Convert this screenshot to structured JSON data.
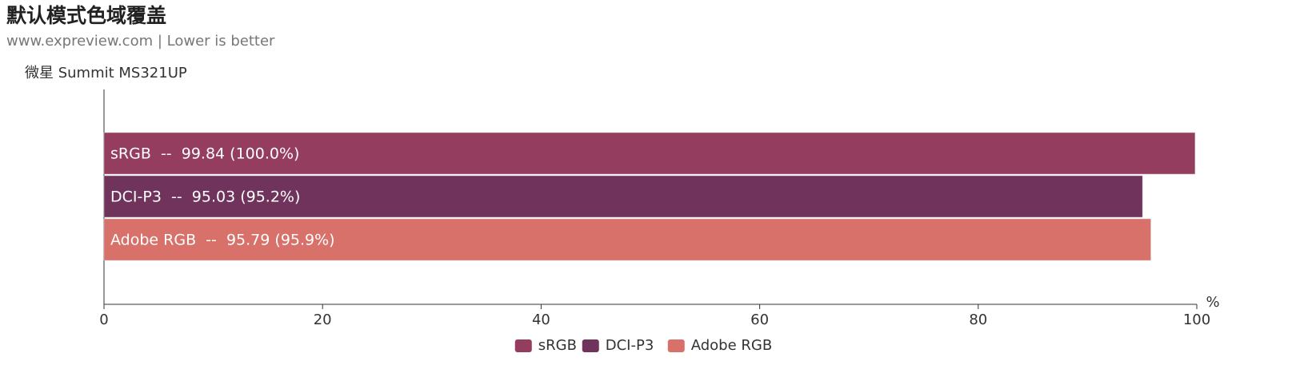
{
  "chart_data": {
    "type": "hbar",
    "title": "默认模式色域覆盖",
    "subtitle": "www.expreview.com | Lower is better",
    "categories": [
      "微星 Summit MS321UP"
    ],
    "series": [
      {
        "name": "sRGB",
        "color": "#953d5e",
        "values": [
          99.84
        ],
        "value_labels": [
          "sRGB  --  99.84 (100.0%)"
        ]
      },
      {
        "name": "DCI-P3",
        "color": "#70345c",
        "values": [
          95.03
        ],
        "value_labels": [
          "DCI-P3  --  95.03 (95.2%)"
        ]
      },
      {
        "name": "Adobe RGB",
        "color": "#d8716a",
        "values": [
          95.79
        ],
        "value_labels": [
          "Adobe RGB  --  95.79 (95.9%)"
        ]
      }
    ],
    "x_label": "%",
    "xlim": [
      0,
      100
    ],
    "xticks": [
      0,
      20,
      40,
      60,
      80,
      100
    ],
    "legend": "bottom"
  }
}
